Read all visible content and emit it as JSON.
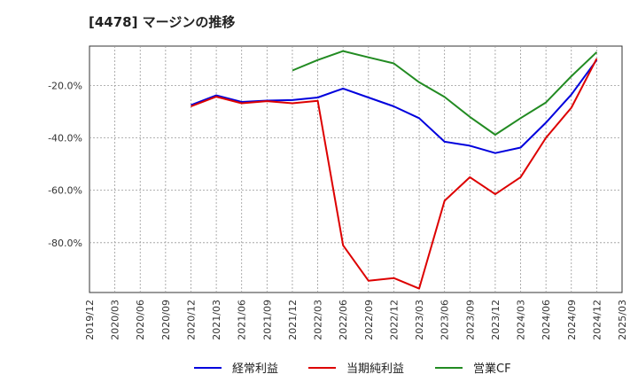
{
  "chart_data": {
    "type": "line",
    "title": "[4478]  マージンの推移",
    "x_ticks": [
      "2019/12",
      "2020/03",
      "2020/06",
      "2020/09",
      "2020/12",
      "2021/03",
      "2021/06",
      "2021/09",
      "2021/12",
      "2022/03",
      "2022/06",
      "2022/09",
      "2022/12",
      "2023/03",
      "2023/06",
      "2023/09",
      "2023/12",
      "2024/03",
      "2024/06",
      "2024/09",
      "2024/12",
      "2025/03"
    ],
    "y_ticks": [
      "-20.0%",
      "-40.0%",
      "-60.0%",
      "-80.0%"
    ],
    "y_tick_values": [
      -20,
      -40,
      -60,
      -80
    ],
    "ylim": [
      -99,
      -5
    ],
    "grid": true,
    "legend_position": "bottom",
    "x": [
      "2020/12",
      "2021/03",
      "2021/06",
      "2021/09",
      "2021/12",
      "2022/03",
      "2022/06",
      "2022/09",
      "2022/12",
      "2023/03",
      "2023/06",
      "2023/09",
      "2023/12",
      "2024/03",
      "2024/06",
      "2024/09",
      "2024/12"
    ],
    "series": [
      {
        "name": "経常利益",
        "color": "#0000dd",
        "values": [
          -27.5,
          -23.8,
          -26.3,
          -25.8,
          -25.6,
          -24.6,
          -21.2,
          -24.6,
          -28,
          -32.5,
          -41.5,
          -43,
          -45.8,
          -43.7,
          -34.2,
          -23.5,
          -10.3
        ]
      },
      {
        "name": "当期純利益",
        "color": "#dd0000",
        "values": [
          -28,
          -24.3,
          -26.8,
          -26,
          -26.8,
          -25.9,
          -81,
          -94.5,
          -93.5,
          -97.5,
          -64,
          -55,
          -61.5,
          -55,
          -40,
          -28.5,
          -9.8
        ]
      },
      {
        "name": "営業CF",
        "color": "#228b22",
        "values": [
          null,
          null,
          null,
          null,
          -14.3,
          -10.3,
          -6.9,
          -9.3,
          -11.6,
          -18.8,
          -24.4,
          -32,
          -38.8,
          -32.5,
          -26.5,
          -16.5,
          -7.3
        ]
      }
    ]
  }
}
